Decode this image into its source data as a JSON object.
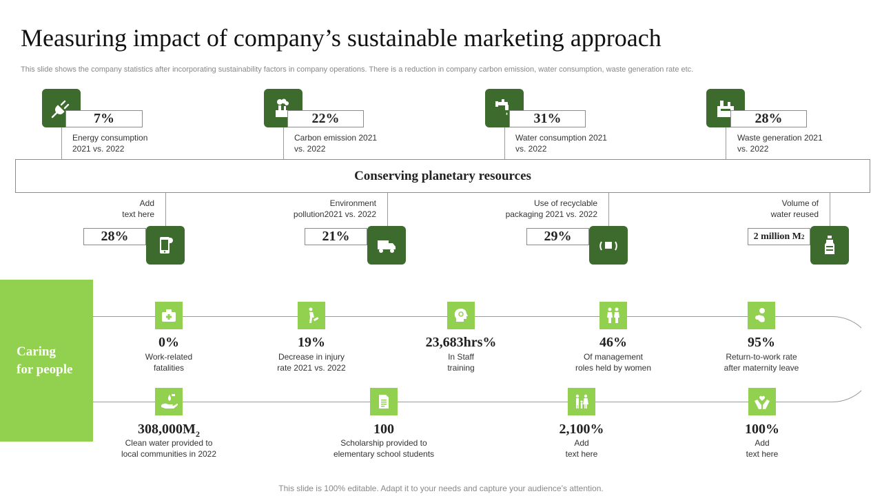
{
  "title": "Measuring impact of company’s sustainable marketing approach",
  "subtitle": "This slide shows the company statistics after incorporating sustainability factors in company operations. There is a reduction in company carbon emission, water consumption, waste generation rate etc.",
  "top_metrics": [
    {
      "value": "7%",
      "label": "Energy consumption\n2021 vs. 2022",
      "icon": "plug-icon"
    },
    {
      "value": "22%",
      "label": "Carbon emission 2021\nvs. 2022",
      "icon": "factory-icon"
    },
    {
      "value": "31%",
      "label": "Water consumption 2021\nvs. 2022",
      "icon": "faucet-icon"
    },
    {
      "value": "28%",
      "label": "Waste generation 2021\nvs. 2022",
      "icon": "waste-icon"
    }
  ],
  "banner": "Conserving planetary resources",
  "bottom_metrics": [
    {
      "value": "28%",
      "label": "Add\ntext here",
      "icon": "phone-icon"
    },
    {
      "value": "21%",
      "label": "Environment\npollution2021 vs. 2022",
      "icon": "truck-icon"
    },
    {
      "value": "29%",
      "label": "Use of recyclable\npackaging 2021 vs. 2022",
      "icon": "recycle-box-icon"
    },
    {
      "value": "2 million M",
      "sub": "2",
      "label": "Volume of\nwater reused",
      "icon": "bottle-icon"
    }
  ],
  "people_label": "Caring\nfor people",
  "people_row1": [
    {
      "value": "0%",
      "label": "Work-related\nfatalities",
      "icon": "first-aid-icon"
    },
    {
      "value": "19%",
      "label": "Decrease in injury\nrate 2021 vs. 2022",
      "icon": "injury-icon"
    },
    {
      "value": "23,683hrs%",
      "label": "In Staff\ntraining",
      "icon": "training-icon"
    },
    {
      "value": "46%",
      "label": "Of management\nroles held by women",
      "icon": "women-icon"
    },
    {
      "value": "95%",
      "label": "Return-to-work  rate\nafter maternity leave",
      "icon": "maternity-icon"
    }
  ],
  "people_row2": [
    {
      "value": "308,000M",
      "sub": "2",
      "label": "Clean water provided  to\nlocal communities in 2022",
      "icon": "water-hand-icon"
    },
    {
      "value": "100",
      "label": "Scholarship provided  to\nelementary school students",
      "icon": "document-icon"
    },
    {
      "value": "2,100%",
      "label": "Add\ntext here",
      "icon": "family-icon"
    },
    {
      "value": "100%",
      "label": "Add\ntext here",
      "icon": "care-hands-icon"
    }
  ],
  "footer": "This slide is 100% editable. Adapt it to your needs and capture your audience’s attention.",
  "colors": {
    "dark_green": "#3d6b2d",
    "light_green": "#92d050"
  }
}
